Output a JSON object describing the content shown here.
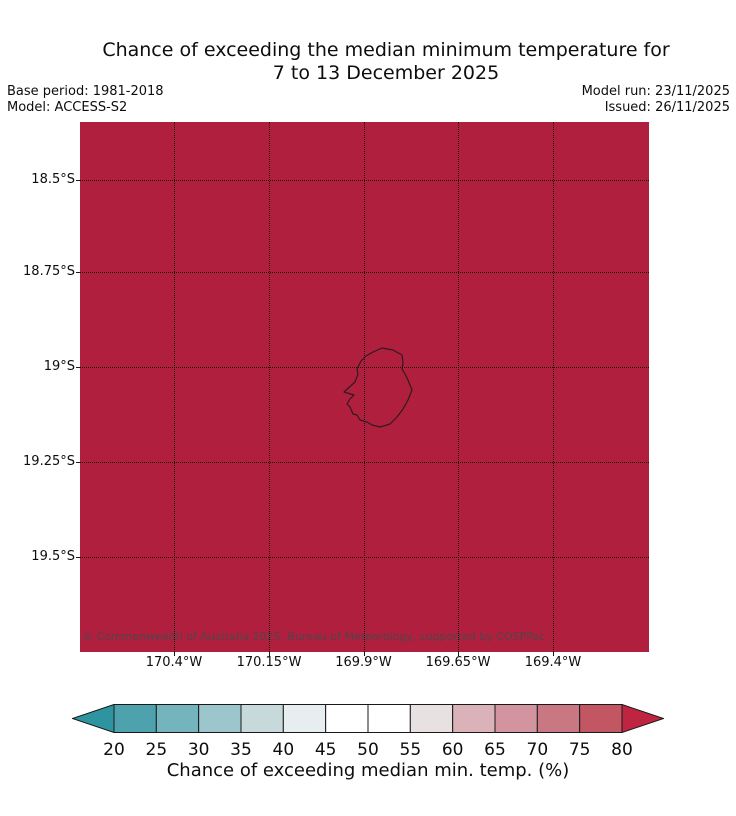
{
  "header": {
    "title_line1": "Chance of exceeding the median minimum temperature for",
    "title_line2": "7 to 13 December 2025",
    "base_period": "Base period: 1981-2018",
    "model": "Model: ACCESS-S2",
    "model_run": "Model run: 23/11/2025",
    "issued": "Issued: 26/11/2025"
  },
  "map": {
    "region_name": "Niue",
    "fill_color": "#b11f3e",
    "island_outline_color": "#2d1b20",
    "copyright": "© Commonwealth of Australia 2025, Bureau of Meteorology, supported by COSPPac",
    "copyright_color": "#53434a"
  },
  "chart_data": {
    "type": "heatmap",
    "title": "Chance of exceeding the median minimum temperature for 7 to 13 December 2025",
    "field": "Chance of exceeding the median minimum temperature (%)",
    "value_depicted": "uniform, above 80% over the entire mapped domain (solid over-range red)",
    "lat_ticks": [
      "18.5°S",
      "18.75°S",
      "19°S",
      "19.25°S",
      "19.5°S"
    ],
    "lon_ticks": [
      "170.4°W",
      "170.15°W",
      "169.9°W",
      "169.65°W",
      "169.4°W"
    ],
    "grid": true,
    "colorbar": {
      "label": "Chance of exceeding median min. temp. (%)",
      "ticks": [
        20,
        25,
        30,
        35,
        40,
        45,
        50,
        55,
        60,
        65,
        70,
        75,
        80
      ],
      "under_arrow_color": "#2e95a0",
      "over_arrow_color": "#bf2441",
      "segment_colors": [
        "#4ea2ae",
        "#74b4bd",
        "#9cc6cb",
        "#c8d9db",
        "#e7eeef",
        "#ffffff",
        "#ffffff",
        "#e7e2e1",
        "#dcb2b9",
        "#d2949e",
        "#c97883",
        "#c25763"
      ],
      "outline_color": "#1a1a1a"
    }
  }
}
